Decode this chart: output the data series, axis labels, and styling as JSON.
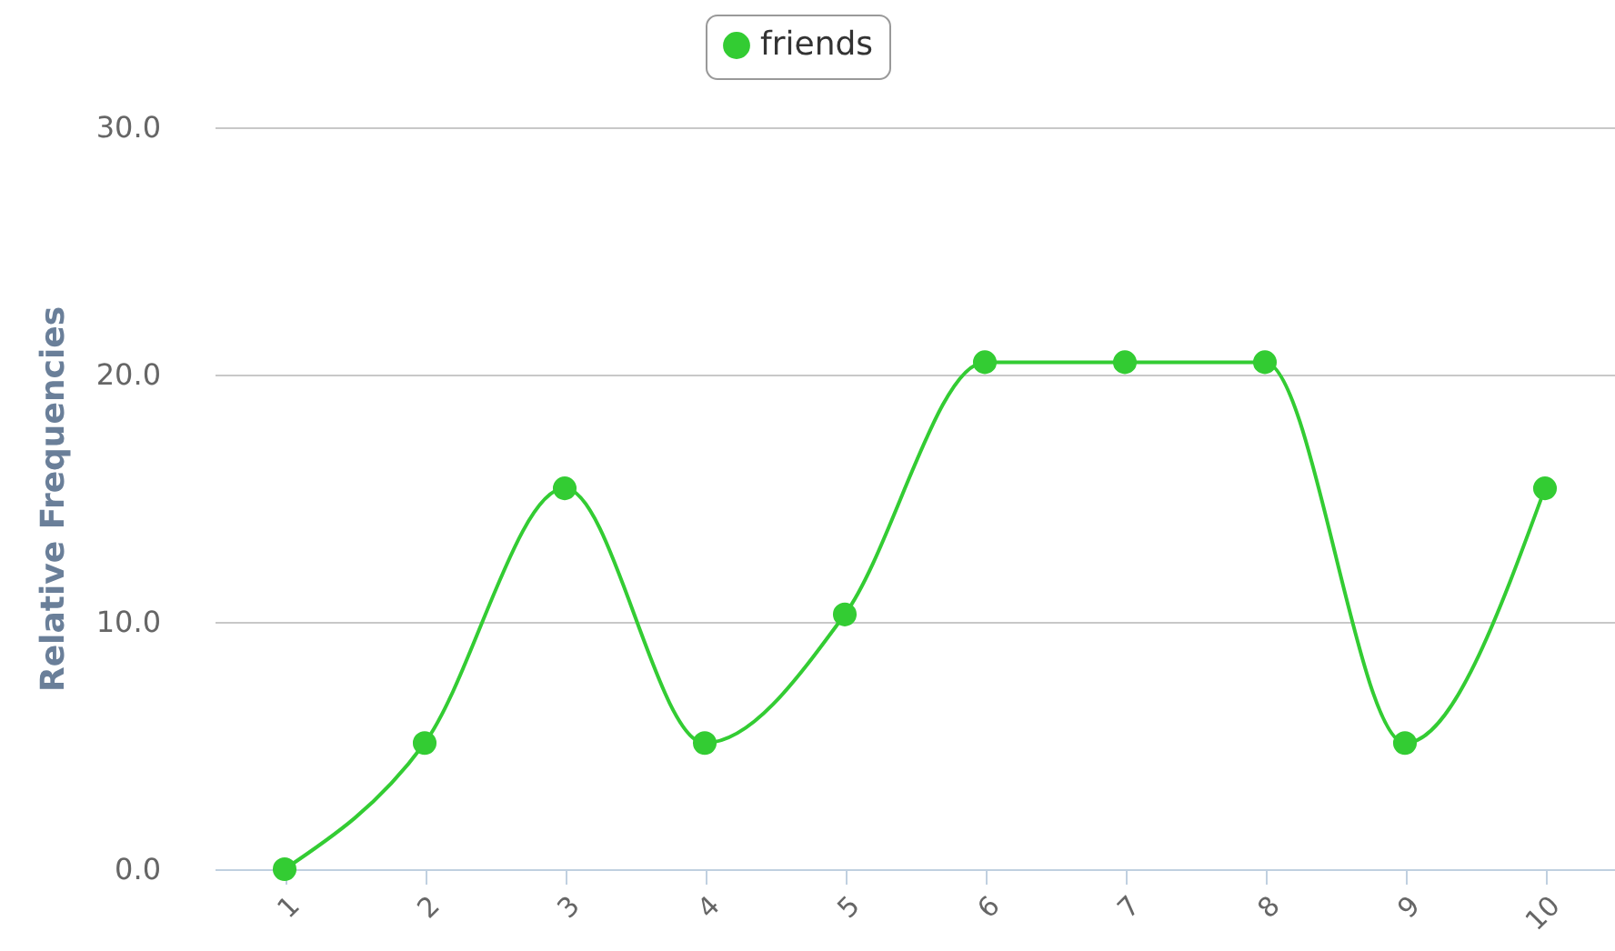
{
  "chart_data": {
    "type": "line",
    "ylabel": "Relative Frequencies",
    "categories": [
      "1",
      "2",
      "3",
      "4",
      "5",
      "6",
      "7",
      "8",
      "9",
      "10"
    ],
    "series": [
      {
        "name": "friends",
        "color": "#33cc33",
        "values": [
          0,
          5.1,
          15.4,
          5.1,
          10.3,
          20.5,
          20.5,
          20.5,
          5.1,
          15.4
        ]
      }
    ],
    "ylim": [
      0,
      30
    ],
    "yticks": [
      {
        "value": 0,
        "label": "0.0"
      },
      {
        "value": 10,
        "label": "10.0"
      },
      {
        "value": 20,
        "label": "20.0"
      },
      {
        "value": 30,
        "label": "30.0"
      }
    ],
    "grid": "y",
    "legend": "top",
    "marker": "circle",
    "line_style": "solid"
  }
}
